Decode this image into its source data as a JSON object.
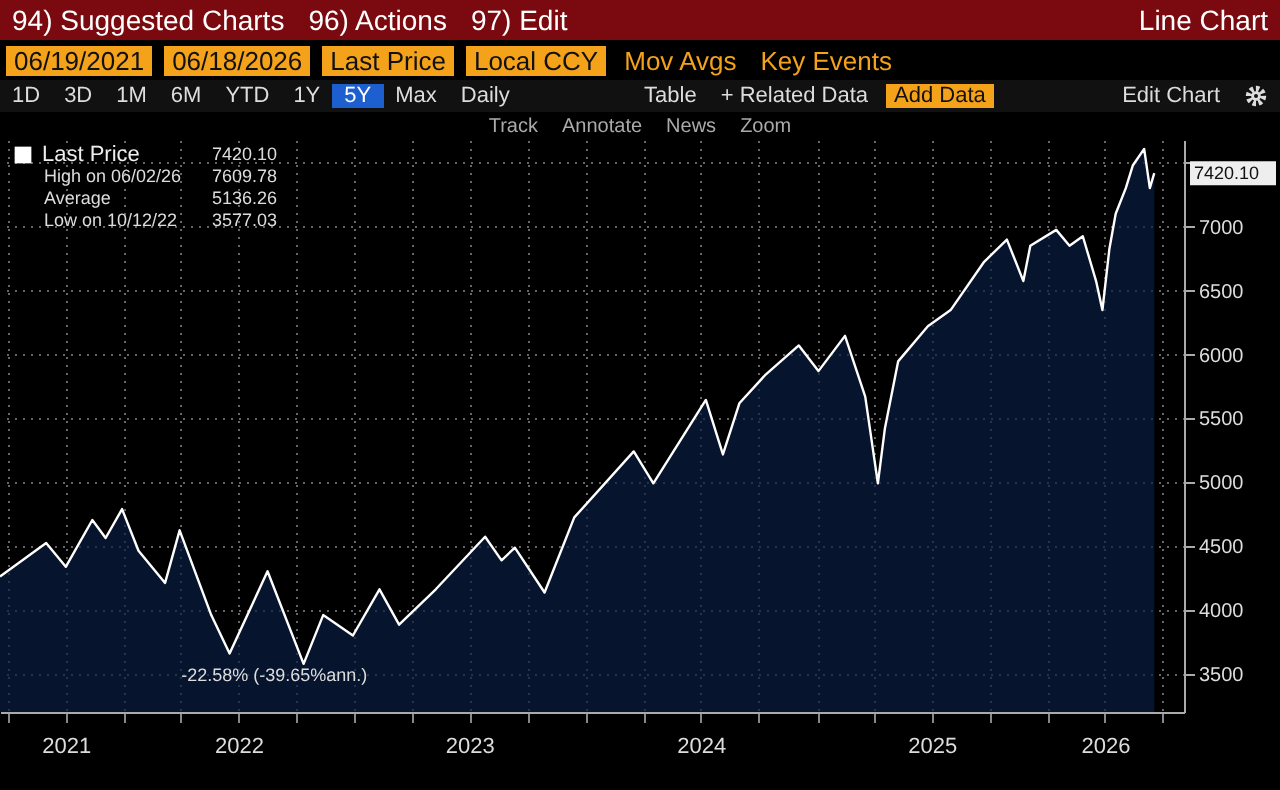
{
  "chart_data": {
    "type": "area",
    "legend": "top left",
    "grid": true,
    "annotations": [
      "94) Suggested Charts",
      "96) Actions",
      "97) Edit",
      "Line Chart",
      "06/19/2021",
      "06/18/2026",
      "Last Price",
      "Local CCY",
      "Mov Avgs",
      "Key Events",
      "1D",
      "3D",
      "1M",
      "6M",
      "YTD",
      "1Y",
      "5Y",
      "Max",
      "Daily",
      "Table",
      "+ Related Data",
      "Add Data",
      "Edit Chart",
      "Track",
      "Annotate",
      "News",
      "Zoom",
      "7420.10",
      "High on 06/02/26",
      "7609.78",
      "Average",
      "5136.26",
      "Low on 10/12/22",
      "3577.03",
      "-22.58% (-39.65%ann.)",
      {
        "text": "7420.10",
        "x": "2026-06-18",
        "y": 7420.1
      }
    ],
    "xlim": [
      "2021-06-19",
      "2026-08-04"
    ],
    "xticks": [
      {
        "value": "2021-07-01",
        "label": null
      },
      {
        "value": "2021-10-01",
        "label": "2021"
      },
      {
        "value": "2022-01-01",
        "label": null
      },
      {
        "value": "2022-04-01",
        "label": null
      },
      {
        "value": "2022-07-01",
        "label": "2022"
      },
      {
        "value": "2022-10-01",
        "label": null
      },
      {
        "value": "2023-01-01",
        "label": null
      },
      {
        "value": "2023-04-01",
        "label": null
      },
      {
        "value": "2023-07-01",
        "label": "2023"
      },
      {
        "value": "2023-10-01",
        "label": null
      },
      {
        "value": "2024-01-01",
        "label": null
      },
      {
        "value": "2024-04-01",
        "label": null
      },
      {
        "value": "2024-07-01",
        "label": "2024"
      },
      {
        "value": "2024-10-01",
        "label": null
      },
      {
        "value": "2025-01-01",
        "label": null
      },
      {
        "value": "2025-04-01",
        "label": null
      },
      {
        "value": "2025-07-01",
        "label": "2025"
      },
      {
        "value": "2025-10-01",
        "label": null
      },
      {
        "value": "2026-01-01",
        "label": null
      },
      {
        "value": "2026-04-01",
        "label": "2026"
      },
      {
        "value": "2026-07-01",
        "label": null
      }
    ],
    "ylim": [
      3200,
      7680
    ],
    "yticks": [
      3500,
      4000,
      4500,
      5000,
      5500,
      6000,
      6500,
      7000,
      {
        "value": 7500,
        "label": null
      }
    ],
    "series": [
      {
        "name": "Last Price",
        "color": "#ffffff",
        "x": [
          "2021-06-19",
          "2021-08-31",
          "2021-10-01",
          "2021-11-12",
          "2021-12-03",
          "2021-12-29",
          "2022-01-24",
          "2022-03-07",
          "2022-03-30",
          "2022-05-19",
          "2022-06-17",
          "2022-08-16",
          "2022-10-12",
          "2022-11-12",
          "2022-12-29",
          "2023-02-09",
          "2023-03-12",
          "2023-05-09",
          "2023-07-26",
          "2023-08-21",
          "2023-09-11",
          "2023-10-28",
          "2023-12-14",
          "2024-03-17",
          "2024-04-17",
          "2024-07-09",
          "2024-08-05",
          "2024-08-31",
          "2024-10-12",
          "2024-12-03",
          "2025-01-03",
          "2025-02-14",
          "2025-03-18",
          "2025-04-07",
          "2025-04-18",
          "2025-05-09",
          "2025-06-25",
          "2025-07-31",
          "2025-09-22",
          "2025-10-28",
          "2025-11-23",
          "2025-12-04",
          "2026-01-14",
          "2026-02-04",
          "2026-02-25",
          "2026-03-18",
          "2026-03-28",
          "2026-04-08",
          "2026-04-18",
          "2026-05-04",
          "2026-05-15",
          "2026-06-02",
          "2026-06-11",
          "2026-06-18"
        ],
        "values": [
          4261,
          4523,
          4337,
          4704,
          4563,
          4789,
          4463,
          4211,
          4623,
          3959,
          3658,
          4302,
          3577,
          3959,
          3799,
          4161,
          3884,
          4161,
          4573,
          4388,
          4487,
          4136,
          4724,
          5241,
          4991,
          5644,
          5217,
          5618,
          5845,
          6071,
          5870,
          6146,
          5670,
          4991,
          5418,
          5946,
          6222,
          6348,
          6726,
          6900,
          6575,
          6851,
          6976,
          6851,
          6926,
          6575,
          6348,
          6826,
          7102,
          7303,
          7480,
          7610,
          7303,
          7420.1
        ]
      }
    ]
  }
}
